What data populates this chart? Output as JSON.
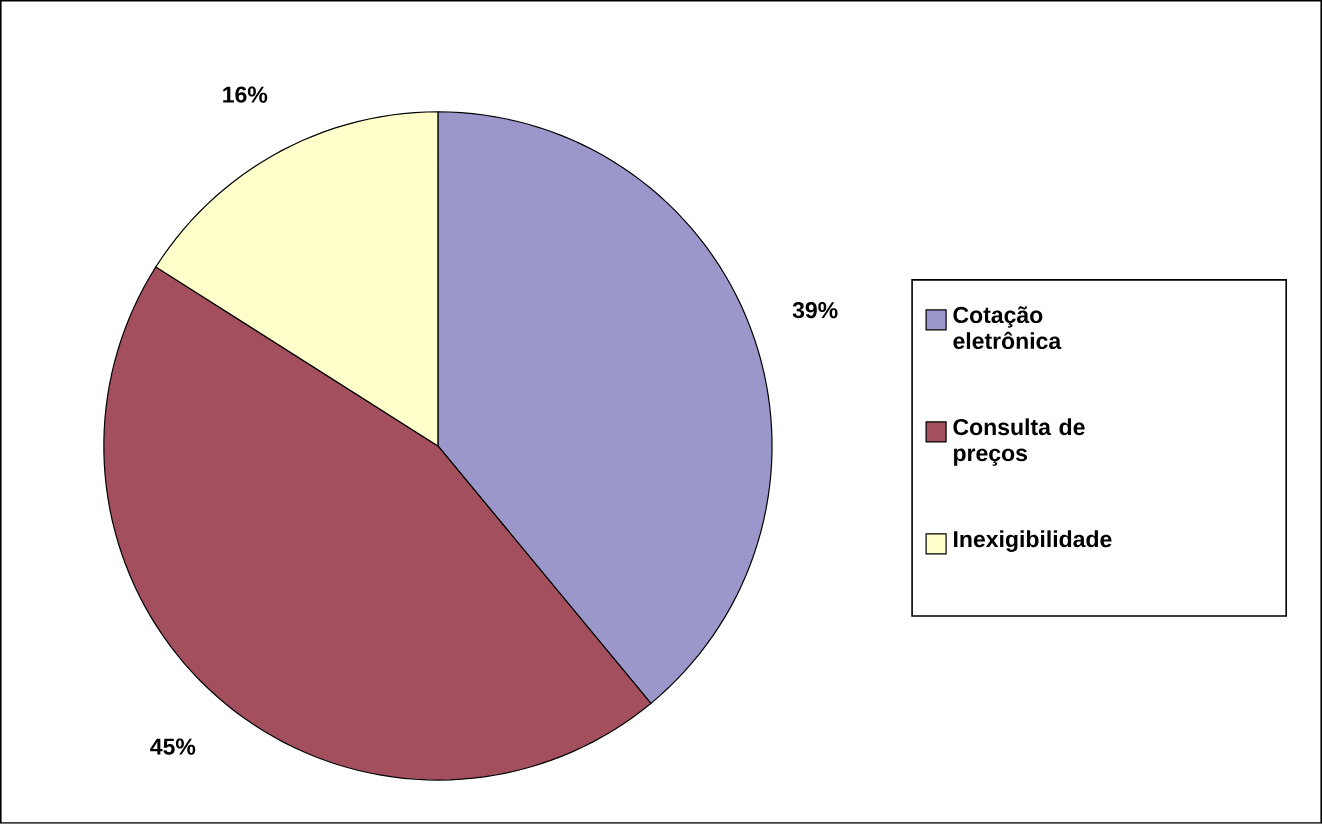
{
  "chart_data": {
    "type": "pie",
    "categories": [
      "Cotação eletrônica",
      "Consulta de preços",
      "Inexigibilidade"
    ],
    "values": [
      39,
      45,
      16
    ],
    "colors": [
      "#9b97cb",
      "#a34f5e",
      "#ffffcc"
    ],
    "value_labels": [
      "39%",
      "45%",
      "16%"
    ],
    "legend": "right"
  }
}
